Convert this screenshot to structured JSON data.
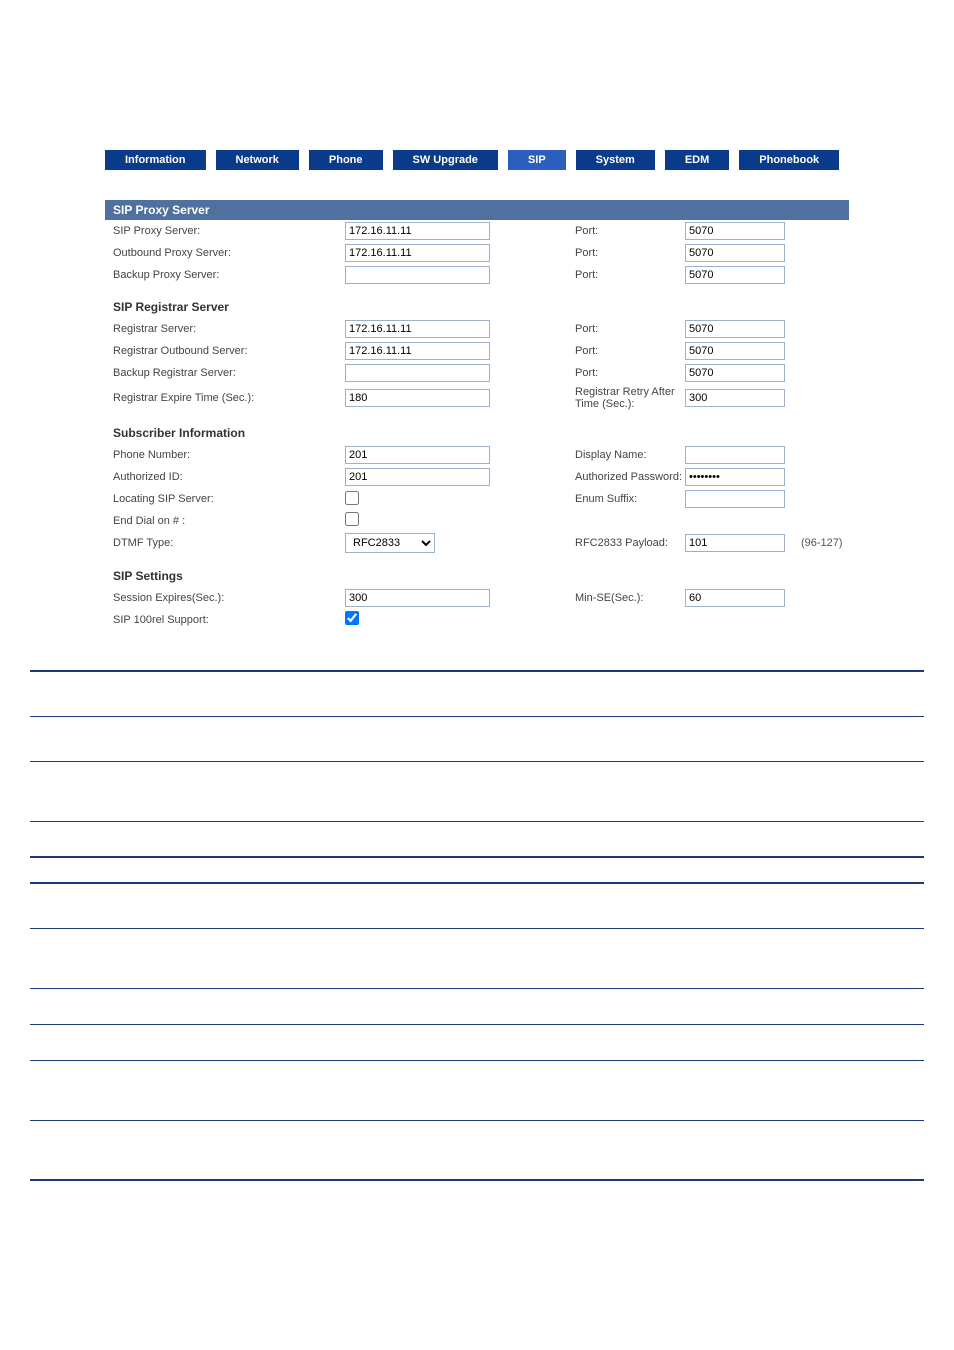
{
  "nav": {
    "tabs": [
      {
        "label": "Information",
        "highlight": false
      },
      {
        "label": "Network",
        "highlight": false
      },
      {
        "label": "Phone",
        "highlight": false
      },
      {
        "label": "SW Upgrade",
        "highlight": false
      },
      {
        "label": "SIP",
        "highlight": true
      },
      {
        "label": "System",
        "highlight": false
      },
      {
        "label": "EDM",
        "highlight": false
      },
      {
        "label": "Phonebook",
        "highlight": false
      }
    ]
  },
  "sections": {
    "sip_proxy": {
      "title": "SIP Proxy Server",
      "rows": [
        {
          "label1": "SIP Proxy Server:",
          "val1": "172.16.11.11",
          "label2": "Port:",
          "val2": "5070"
        },
        {
          "label1": "Outbound Proxy Server:",
          "val1": "172.16.11.11",
          "label2": "Port:",
          "val2": "5070"
        },
        {
          "label1": "Backup Proxy Server:",
          "val1": "",
          "label2": "Port:",
          "val2": "5070"
        }
      ]
    },
    "sip_registrar": {
      "title": "SIP Registrar Server",
      "rows": [
        {
          "label1": "Registrar Server:",
          "val1": "172.16.11.11",
          "label2": "Port:",
          "val2": "5070"
        },
        {
          "label1": "Registrar Outbound Server:",
          "val1": "172.16.11.11",
          "label2": "Port:",
          "val2": "5070"
        },
        {
          "label1": "Backup Registrar Server:",
          "val1": "",
          "label2": "Port:",
          "val2": "5070"
        },
        {
          "label1": "Registrar Expire Time (Sec.):",
          "val1": "180",
          "label2": "Registrar Retry After Time (Sec.):",
          "val2": "300"
        }
      ]
    },
    "subscriber": {
      "title": "Subscriber Information",
      "phone_number_label": "Phone Number:",
      "phone_number": "201",
      "display_name_label": "Display Name:",
      "display_name": "",
      "auth_id_label": "Authorized ID:",
      "auth_id": "201",
      "auth_pw_label": "Authorized Password:",
      "auth_pw": "••••••••",
      "locating_label": "Locating SIP Server:",
      "locating_checked": false,
      "enum_suffix_label": "Enum Suffix:",
      "enum_suffix": "",
      "end_dial_label": "End Dial on # :",
      "end_dial_checked": false,
      "dtmf_type_label": "DTMF Type:",
      "dtmf_type": "RFC2833",
      "rfc2833_payload_label": "RFC2833 Payload:",
      "rfc2833_payload": "101",
      "rfc2833_range": "(96-127)"
    },
    "sip_settings": {
      "title": "SIP Settings",
      "session_expires_label": "Session Expires(Sec.):",
      "session_expires": "300",
      "min_se_label": "Min-SE(Sec.):",
      "min_se": "60",
      "sip_100rel_label": "SIP 100rel Support:",
      "sip_100rel_checked": true
    }
  },
  "table1_rows": [
    {
      "h": "med"
    },
    {
      "h": "med"
    },
    {
      "h": "tall"
    },
    {
      "h": "short"
    }
  ],
  "table2_rows": [
    {
      "h": "med"
    },
    {
      "h": "tall"
    },
    {
      "h": "short"
    },
    {
      "h": "short"
    },
    {
      "h": "tall"
    },
    {
      "h": "tall"
    }
  ]
}
